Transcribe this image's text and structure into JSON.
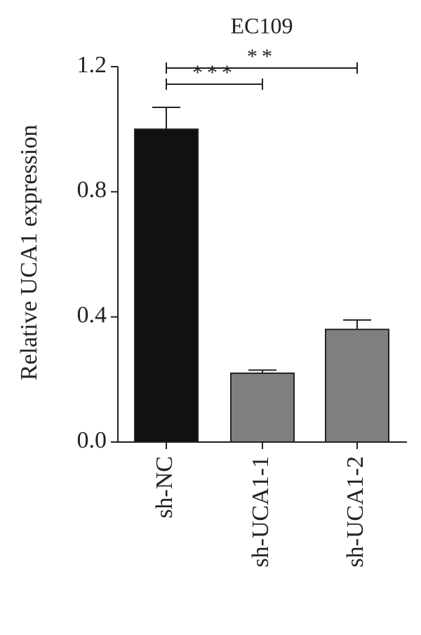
{
  "chart_data": {
    "type": "bar",
    "title": "EC109",
    "y_label": "Relative UCA1 expression",
    "categories": [
      "sh-NC",
      "sh-UCA1-1",
      "sh-UCA1-2"
    ],
    "values": [
      1.0,
      0.22,
      0.36
    ],
    "errors": [
      0.07,
      0.01,
      0.03
    ],
    "colors": [
      "#111111",
      "#808080",
      "#808080"
    ],
    "ylim": [
      0,
      1.2
    ],
    "yticks": [
      {
        "value": 0,
        "label": "0.0"
      },
      0.4,
      0.8,
      1.2
    ],
    "significance": [
      {
        "label": "***",
        "categories": [
          "sh-NC",
          "sh-UCA1-1"
        ]
      },
      {
        "label": "**",
        "categories": [
          "sh-NC",
          "sh-UCA1-2"
        ]
      }
    ]
  }
}
